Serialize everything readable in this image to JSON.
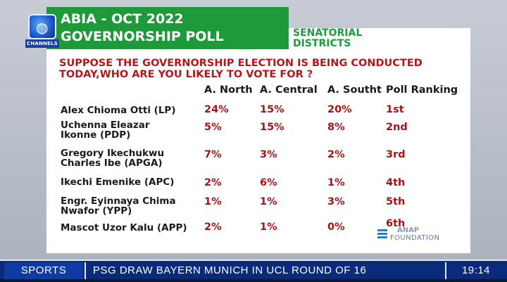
{
  "channel": {
    "logo_text": "CHANNELS"
  },
  "title": {
    "line1": "ABIA - OCT 2022",
    "line2": "GOVERNORSHIP POLL"
  },
  "districts_label": {
    "line1": "SENATORIAL",
    "line2": "DISTRICTS"
  },
  "question": {
    "line1": "SUPPOSE THE GOVERNORSHIP ELECTION IS BEING CONDUCTED",
    "line2": "TODAY,WHO ARE YOU LIKELY TO VOTE FOR ?"
  },
  "table": {
    "headers": [
      "A. North",
      "A. Central",
      "A. Southt",
      "Poll Ranking"
    ],
    "rows": [
      {
        "name": [
          "Alex Chioma Otti (LP)"
        ],
        "north": "24%",
        "central": "15%",
        "south": "20%",
        "rank": "1st"
      },
      {
        "name": [
          "Uchenna Eleazar",
          "Ikonne (PDP)"
        ],
        "north": "5%",
        "central": "15%",
        "south": "8%",
        "rank": "2nd"
      },
      {
        "name": [
          "Gregory Ikechukwu",
          "Charles Ibe (APGA)"
        ],
        "north": "7%",
        "central": "3%",
        "south": "2%",
        "rank": "3rd"
      },
      {
        "name": [
          "Ikechi Emenike (APC)"
        ],
        "north": "2%",
        "central": "6%",
        "south": "1%",
        "rank": "4th"
      },
      {
        "name": [
          "Engr. Eyinnaya Chima",
          "Nwafor (YPP)"
        ],
        "north": "1%",
        "central": "1%",
        "south": "3%",
        "rank": "5th"
      },
      {
        "name": [
          "Mascot Uzor Kalu (APP)"
        ],
        "north": "2%",
        "central": "1%",
        "south": "0%",
        "rank": "6th"
      }
    ]
  },
  "source": {
    "name": "ANAP",
    "sub": "FOUNDATION"
  },
  "ticker": {
    "section": "SPORTS",
    "headline": "PSG DRAW BAYERN MUNICH IN UCL ROUND OF 16",
    "time": "19:14"
  },
  "colors": {
    "title_bg": "#1e9a3a",
    "accent_red": "#b0181c",
    "ticker_bg": "#0a2a7a"
  }
}
